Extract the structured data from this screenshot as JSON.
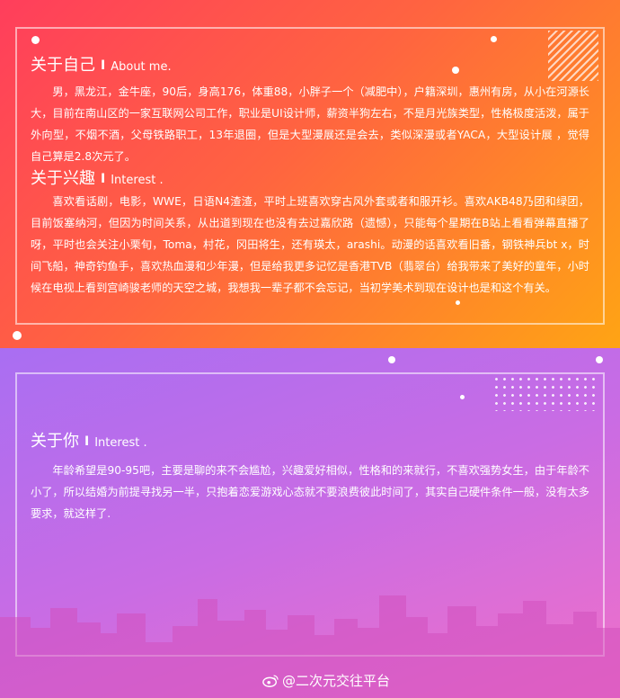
{
  "about_me": {
    "title": "关于自己",
    "separator": "I",
    "subtitle": "About me.",
    "text": "男，黑龙江，金牛座，90后，身高176，体重88，小胖子一个（减肥中），户籍深圳，惠州有房，从小在河源长大，目前在南山区的一家互联网公司工作，职业是UI设计师，薪资半狗左右，不是月光族类型，性格极度活泼，属于外向型，不烟不酒，父母铁路职工，13年退圈，但是大型漫展还是会去，类似深漫或者YACA，大型设计展 ，觉得自己算是2.8次元了。"
  },
  "interests": {
    "title": "关于兴趣",
    "separator": "I",
    "subtitle": "Interest .",
    "text": "喜欢看话剧，电影，WWE，日语N4渣渣，平时上班喜欢穿古风外套或者和服开衫。喜欢AKB48乃团和绿团，目前饭塞纳河，但因为时间关系，从出道到现在也没有去过嘉欣路（遗憾），只能每个星期在B站上看看弹幕直播了呀，平时也会关注小栗旬，Toma，村花，冈田将生，还有瑛太，arashi。动漫的话喜欢看旧番，钢铁神兵bt x，时间飞船，神奇钓鱼手，喜欢热血漫和少年漫，但是给我更多记忆是香港TVB（翡翠台）给我带来了美好的童年，小时候在电视上看到宫崎骏老师的天空之城，我想我一辈子都不会忘记，当初学美术到现在设计也是和这个有关。"
  },
  "about_you": {
    "title": "关于你",
    "separator": "I",
    "subtitle": "Interest .",
    "text": "年龄希望是90-95吧，主要是聊的来不会尴尬，兴趣爱好相似，性格和的来就行，不喜欢强势女生，由于年龄不小了，所以结婚为前提寻找另一半，只抱着恋爱游戏心态就不要浪费彼此时间了，其实自己硬件条件一般，没有太多要求，就这样了."
  },
  "watermark": {
    "text": "@二次元交往平台",
    "icon": "weibo-icon"
  },
  "colors": {
    "top_gradient": [
      "#ff3e5c",
      "#ff6440",
      "#ffa414"
    ],
    "bottom_gradient": [
      "#a96ef2",
      "#c96ce4",
      "#f070c8"
    ],
    "text": "#ffffff"
  }
}
